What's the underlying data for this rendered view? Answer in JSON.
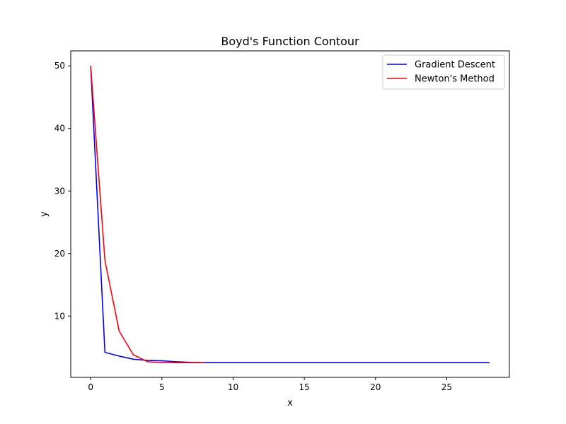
{
  "chart_data": {
    "type": "line",
    "title": "Boyd's Function Contour",
    "xlabel": "x",
    "ylabel": "y",
    "xlim": [
      -1.4,
      29.4
    ],
    "ylim": [
      0.2,
      52.4
    ],
    "xticks": [
      0,
      5,
      10,
      15,
      20,
      25
    ],
    "yticks": [
      10,
      20,
      30,
      40,
      50
    ],
    "grid": false,
    "legend_position": "top-right",
    "series": [
      {
        "name": "Gradient Descent",
        "color": "#0000ff",
        "x": [
          0,
          1,
          2,
          3,
          4,
          5,
          6,
          7,
          8,
          9,
          10,
          11,
          12,
          13,
          14,
          15,
          16,
          17,
          18,
          19,
          20,
          21,
          22,
          23,
          24,
          25,
          26,
          27,
          28
        ],
        "y": [
          50,
          4.2,
          3.6,
          3.1,
          2.9,
          2.85,
          2.7,
          2.6,
          2.55,
          2.55,
          2.55,
          2.55,
          2.55,
          2.55,
          2.55,
          2.55,
          2.55,
          2.55,
          2.55,
          2.55,
          2.55,
          2.55,
          2.55,
          2.55,
          2.55,
          2.55,
          2.55,
          2.55,
          2.55
        ]
      },
      {
        "name": "Newton's Method",
        "color": "#ff0000",
        "x": [
          0,
          1,
          2,
          3,
          4,
          5,
          6,
          7,
          8
        ],
        "y": [
          50,
          18.9,
          7.6,
          3.8,
          2.7,
          2.55,
          2.55,
          2.55,
          2.55
        ]
      }
    ]
  }
}
